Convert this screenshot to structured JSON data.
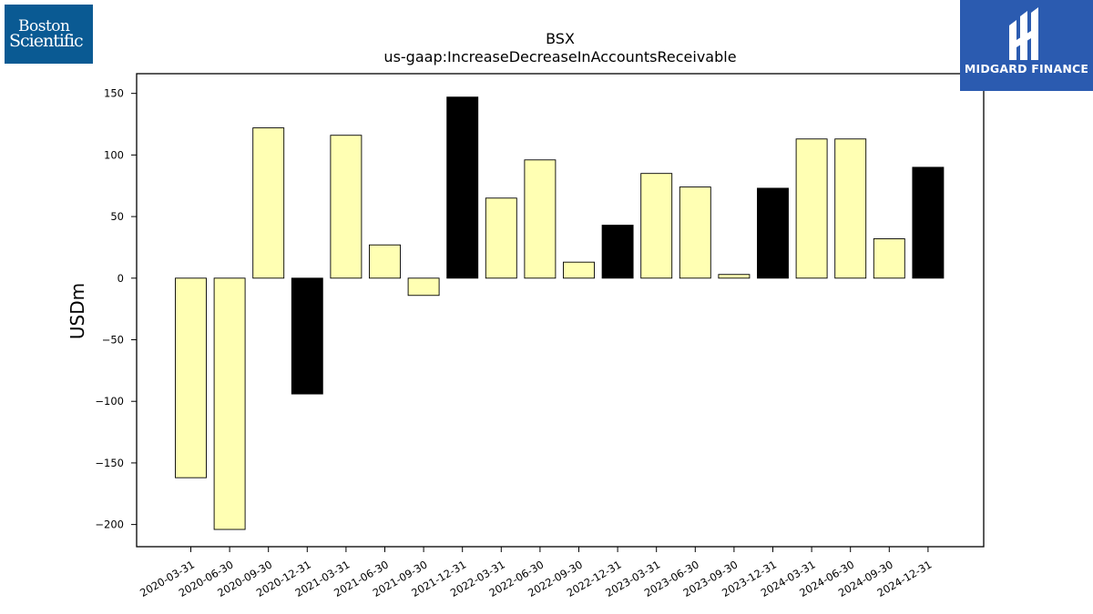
{
  "logos": {
    "left": {
      "line1": "Boston",
      "line2": "Scientific",
      "bg": "#0a5a93"
    },
    "right": {
      "text": "MIDGARD FINANCE",
      "bg": "#2b5bb0",
      "icon": "midgard-logo-icon"
    }
  },
  "chart_data": {
    "type": "bar",
    "title": "BSX",
    "subtitle": "us-gaap:IncreaseDecreaseInAccountsReceivable",
    "xlabel": "",
    "ylabel": "USDm",
    "ylim": [
      -218,
      166
    ],
    "yticks": [
      -200,
      -150,
      -100,
      -50,
      0,
      50,
      100,
      150
    ],
    "grid": false,
    "categories": [
      "2020-03-31",
      "2020-06-30",
      "2020-09-30",
      "2020-12-31",
      "2021-03-31",
      "2021-06-30",
      "2021-09-30",
      "2021-12-31",
      "2022-03-31",
      "2022-06-30",
      "2022-09-30",
      "2022-12-31",
      "2023-03-31",
      "2023-06-30",
      "2023-09-30",
      "2023-12-31",
      "2024-03-31",
      "2024-06-30",
      "2024-09-30",
      "2024-12-31"
    ],
    "values": [
      -162,
      -204,
      122,
      -94,
      116,
      27,
      -14,
      147,
      65,
      96,
      13,
      43,
      85,
      74,
      3,
      73,
      113,
      113,
      32,
      90
    ],
    "colors": {
      "quarter": "#ffffb3",
      "year_end": "#000000",
      "edge": "#000000"
    },
    "highlight": [
      false,
      false,
      false,
      true,
      false,
      false,
      false,
      true,
      false,
      false,
      false,
      true,
      false,
      false,
      false,
      true,
      false,
      false,
      false,
      true
    ]
  }
}
